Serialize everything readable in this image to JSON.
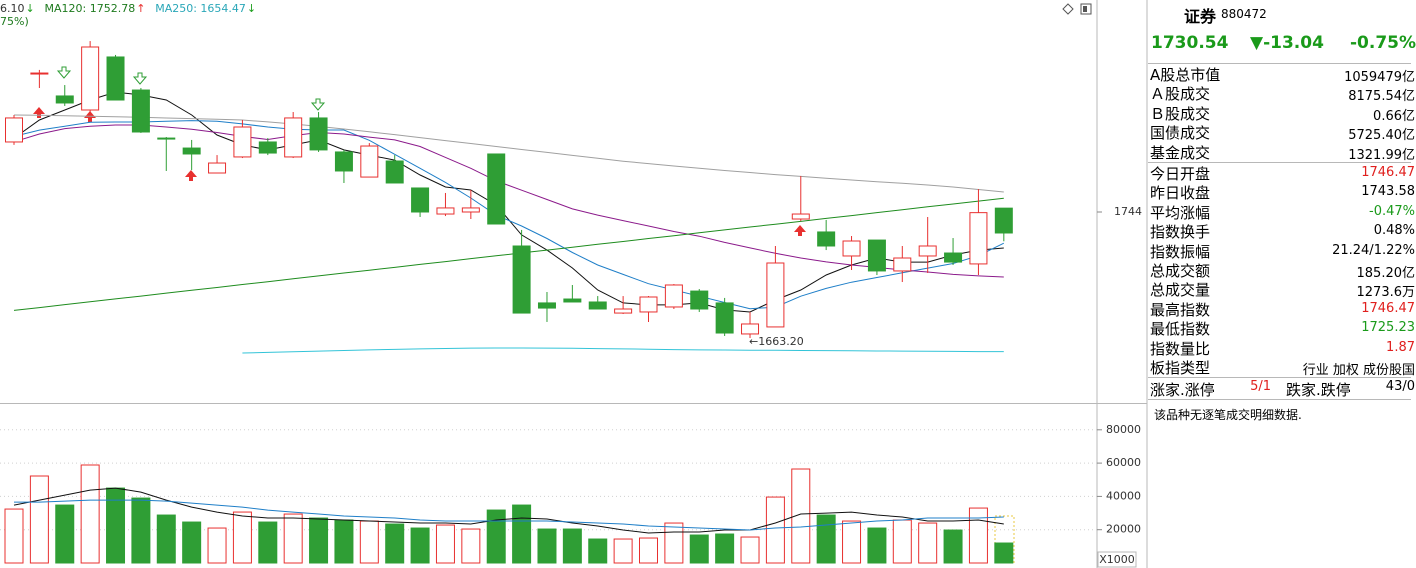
{
  "chart_data": [
    {
      "type": "candlestick",
      "categories": [
        null,
        null,
        null,
        null,
        null,
        null,
        null,
        null,
        null,
        null,
        null,
        null,
        null,
        null,
        null,
        null,
        null,
        null,
        null,
        null,
        null,
        null,
        null,
        null,
        null,
        null,
        null,
        null,
        null,
        null,
        null,
        null,
        null,
        null,
        null,
        null,
        null,
        null,
        null,
        null
      ],
      "open": [
        1788.9,
        1832.5,
        1818.4,
        1809.4,
        1843.4,
        1822.2,
        1791.4,
        1785.0,
        1769.0,
        1779.3,
        1788.9,
        1779.3,
        1804.3,
        1782.5,
        1766.4,
        1776.7,
        1759.4,
        1742.7,
        1744.0,
        1781.2,
        1722.2,
        1685.7,
        1688.2,
        1686.3,
        1679.2,
        1679.9,
        1683.1,
        1693.3,
        1685.7,
        1665.8,
        1670.3,
        1739.5,
        1731.2,
        1715.8,
        1726.0,
        1706.2,
        1715.8,
        1717.7,
        1710.7,
        1746.47
      ],
      "high": [
        1806.2,
        1835.1,
        1825.4,
        1853.6,
        1844.7,
        1823.5,
        1792.1,
        1790.2,
        1780.5,
        1803.0,
        1791.4,
        1808.1,
        1808.1,
        1783.8,
        1788.2,
        1780.5,
        1759.4,
        1756.2,
        1758.1,
        1781.2,
        1732.5,
        1692.7,
        1697.2,
        1690.1,
        1690.1,
        1690.1,
        1697.8,
        1694.6,
        1688.9,
        1679.9,
        1722.2,
        1767.1,
        1738.9,
        1728.6,
        1726.0,
        1722.2,
        1740.8,
        1727.3,
        1758.7,
        1746.47
      ],
      "low": [
        1787.0,
        1823.5,
        1812.0,
        1808.1,
        1815.8,
        1794.7,
        1770.3,
        1770.9,
        1769.0,
        1778.6,
        1780.5,
        1778.6,
        1782.5,
        1762.6,
        1766.4,
        1762.6,
        1740.8,
        1741.4,
        1739.5,
        1736.3,
        1679.2,
        1673.5,
        1686.3,
        1681.8,
        1678.6,
        1673.5,
        1681.8,
        1679.9,
        1664.5,
        1663.2,
        1670.3,
        1738.2,
        1719.6,
        1706.8,
        1703.6,
        1699.1,
        1704.9,
        1710.0,
        1703.6,
        1725.23
      ],
      "close": [
        1804.3,
        1833.1,
        1813.9,
        1849.8,
        1815.8,
        1795.3,
        1790.8,
        1781.2,
        1775.4,
        1798.5,
        1781.8,
        1804.3,
        1783.8,
        1770.3,
        1786.3,
        1762.6,
        1744.0,
        1746.6,
        1746.6,
        1736.3,
        1679.2,
        1682.4,
        1686.3,
        1681.8,
        1681.8,
        1689.5,
        1697.2,
        1681.8,
        1666.4,
        1672.2,
        1711.3,
        1742.7,
        1722.2,
        1725.4,
        1706.2,
        1714.5,
        1722.2,
        1711.9,
        1743.58,
        1730.54
      ],
      "up_color": "#e8302f",
      "down_color": "#2f9e35",
      "series": [
        {
          "color": "#111111",
          "values": [
            1791.4,
            1803.0,
            1809.4,
            1815.8,
            1820.9,
            1819.0,
            1815.8,
            1806.2,
            1793.4,
            1787.0,
            1783.8,
            1787.0,
            1790.2,
            1783.8,
            1780.5,
            1777.3,
            1767.7,
            1760.0,
            1758.1,
            1748.5,
            1729.3,
            1719.6,
            1708.1,
            1694.0,
            1685.7,
            1684.4,
            1684.4,
            1685.7,
            1681.2,
            1679.9,
            1687.6,
            1694.0,
            1703.6,
            1710.0,
            1714.5,
            1711.9,
            1711.9,
            1716.4,
            1719.6,
            1720.9
          ]
        },
        {
          "color": "#1f7fc8",
          "values": [
            1792.5,
            1796.5,
            1799.0,
            1801.5,
            1801.7,
            1801.7,
            1802.2,
            1802.6,
            1802.2,
            1800.5,
            1798.5,
            1797.0,
            1796.6,
            1796.6,
            1790.0,
            1781.0,
            1772.0,
            1763.0,
            1753.0,
            1742.0,
            1735.0,
            1727.0,
            1718.0,
            1710.0,
            1704.0,
            1698.0,
            1694.0,
            1690.0,
            1686.0,
            1682.0,
            1683.0,
            1690.0,
            1695.0,
            1699.0,
            1702.0,
            1705.0,
            1708.0,
            1711.0,
            1716.0,
            1724.0
          ]
        },
        {
          "color": "#8b1a8b",
          "values": [
            1789.0,
            1794.0,
            1797.5,
            1799.0,
            1799.8,
            1799.8,
            1798.5,
            1797.0,
            1795.0,
            1792.5,
            1790.5,
            1793.0,
            1795.0,
            1794.0,
            1792.0,
            1790.2,
            1786.0,
            1779.0,
            1772.0,
            1764.0,
            1758.0,
            1752.0,
            1746.0,
            1742.0,
            1738.5,
            1735.0,
            1731.5,
            1728.5,
            1724.5,
            1721.0,
            1717.5,
            1714.5,
            1712.0,
            1710.0,
            1708.5,
            1706.8,
            1705.5,
            1704.0,
            1703.0,
            1702.3
          ]
        },
        {
          "color": "#a0a0a0",
          "values": [
            1806.2,
            1806.0,
            1805.7,
            1805.4,
            1805.1,
            1804.7,
            1804.3,
            1803.9,
            1803.5,
            1803.0,
            1801.8,
            1800.4,
            1798.9,
            1797.2,
            1795.4,
            1793.6,
            1791.7,
            1789.8,
            1787.9,
            1786.0,
            1784.1,
            1782.2,
            1780.3,
            1778.4,
            1776.6,
            1775.0,
            1773.5,
            1772.0,
            1770.6,
            1769.3,
            1768.0,
            1766.8,
            1765.6,
            1764.5,
            1763.4,
            1762.4,
            1761.3,
            1760.0,
            1758.4,
            1756.8
          ]
        },
        {
          "color": "#1e8c1e",
          "values": [
            1680.9,
            1682.7,
            1684.6,
            1686.4,
            1688.3,
            1690.1,
            1692.0,
            1693.8,
            1695.6,
            1697.5,
            1699.3,
            1701.2,
            1703.0,
            1704.9,
            1706.7,
            1708.5,
            1710.4,
            1712.2,
            1714.1,
            1715.9,
            1717.8,
            1719.6,
            1721.4,
            1723.3,
            1725.1,
            1727.0,
            1728.8,
            1730.7,
            1732.5,
            1734.4,
            1736.2,
            1738.0,
            1739.9,
            1741.7,
            1743.6,
            1745.4,
            1747.3,
            1749.1,
            1751.0,
            1752.78
          ]
        },
        {
          "color": "#33c4d8",
          "values": [
            null,
            null,
            null,
            null,
            null,
            null,
            null,
            null,
            null,
            1653.6,
            1654.0,
            1654.4,
            1654.8,
            1655.2,
            1655.6,
            1655.9,
            1656.2,
            1656.5,
            1656.7,
            1656.8,
            1656.8,
            1656.7,
            1656.6,
            1656.4,
            1656.2,
            1656.0,
            1655.8,
            1655.6,
            1655.5,
            1655.4,
            1655.3,
            1655.2,
            1655.1,
            1655.0,
            1654.9,
            1654.8,
            1654.7,
            1654.6,
            1654.5,
            1654.47
          ]
        }
      ],
      "ylim": [
        1621.53,
        1879.93
      ],
      "yticks": [
        1744
      ],
      "annotation": "←1663.20",
      "header": [
        {
          "text": "6.10",
          "color": "#333333",
          "arrow": "↓",
          "arrow_color": "#1e9e1e"
        },
        {
          "text": "MA120: 1752.78",
          "color": "#1e7a1e",
          "arrow": "↑",
          "arrow_color": "#e8302f"
        },
        {
          "text": "MA250: 1654.47",
          "color": "#2aa7b8",
          "arrow": "↓",
          "arrow_color": "#1e9e1e"
        }
      ],
      "subheader": "75%)"
    },
    {
      "type": "bar",
      "values": [
        32400,
        52250,
        34800,
        58860,
        45000,
        39000,
        28800,
        24600,
        21000,
        30600,
        24600,
        29400,
        27000,
        25800,
        25200,
        23400,
        21000,
        22800,
        20400,
        31800,
        34800,
        20400,
        20400,
        14400,
        14400,
        15000,
        24000,
        16800,
        17400,
        15600,
        39600,
        56450,
        28800,
        25200,
        21000,
        25800,
        24000,
        19800,
        33000,
        12000
      ],
      "series": [
        {
          "color": "#111111",
          "values": [
            34800,
            37800,
            40800,
            43800,
            45000,
            42600,
            37800,
            33600,
            30600,
            28200,
            27000,
            27000,
            26400,
            25800,
            25200,
            24600,
            24000,
            24000,
            23400,
            25800,
            27000,
            26400,
            24000,
            22200,
            19800,
            18000,
            18600,
            18600,
            19800,
            19800,
            24000,
            29400,
            30000,
            30600,
            28800,
            27600,
            25200,
            25200,
            25800,
            23400
          ]
        },
        {
          "color": "#1f7fc8",
          "values": [
            36600,
            36600,
            37200,
            37800,
            37800,
            37800,
            37200,
            36000,
            34800,
            33600,
            31800,
            30600,
            29400,
            28200,
            27600,
            27000,
            25800,
            25200,
            25200,
            25200,
            25200,
            25200,
            24600,
            24000,
            23400,
            22200,
            21600,
            21000,
            20400,
            19800,
            21000,
            21600,
            22800,
            24000,
            25200,
            25800,
            27000,
            27000,
            27000,
            27600
          ]
        }
      ],
      "ylim": [
        0,
        94895
      ],
      "yticks": [
        20000,
        40000,
        60000,
        80000
      ],
      "grid": true,
      "unit_label": "X1000"
    }
  ],
  "panel": {
    "name": "证券",
    "code": "880472",
    "quote": [
      {
        "text": "1730.54",
        "color": "#1a9a1a"
      },
      {
        "text": "▼-13.04",
        "color": "#1a9a1a"
      },
      {
        "text": "-0.75%",
        "color": "#1a9a1a"
      }
    ],
    "groups": [
      [
        {
          "label": "A股总市值",
          "value": "1059479亿",
          "color": "#000000"
        },
        {
          "label": "Ａ股成交",
          "value": "8175.54亿",
          "color": "#000000"
        },
        {
          "label": "Ｂ股成交",
          "value": "0.66亿",
          "color": "#000000"
        },
        {
          "label": "国债成交",
          "value": "5725.40亿",
          "color": "#000000"
        },
        {
          "label": "基金成交",
          "value": "1321.99亿",
          "color": "#000000"
        }
      ],
      [
        {
          "label": "今日开盘",
          "value": "1746.47",
          "color": "#e0201e"
        },
        {
          "label": "昨日收盘",
          "value": "1743.58",
          "color": "#000000"
        },
        {
          "label": "平均涨幅",
          "value": "-0.47%",
          "color": "#1a9a1a"
        },
        {
          "label": "指数换手",
          "value": "0.48%",
          "color": "#000000"
        },
        {
          "label": "指数振幅",
          "value": "21.24/1.22%",
          "color": "#000000"
        },
        {
          "label": "总成交额",
          "value": "185.20亿",
          "color": "#000000"
        },
        {
          "label": "总成交量",
          "value": "1273.6万",
          "color": "#000000"
        },
        {
          "label": "最高指数",
          "value": "1746.47",
          "color": "#e0201e"
        },
        {
          "label": "最低指数",
          "value": "1725.23",
          "color": "#1a9a1a"
        },
        {
          "label": "指数量比",
          "value": "1.87",
          "color": "#e0201e"
        },
        {
          "label": "板指类型",
          "value": "行业 加权 成份股国",
          "color": "#000000"
        }
      ]
    ],
    "limit_row": [
      {
        "text": "涨家.涨停",
        "color": "#000000"
      },
      {
        "text": "5/1",
        "color": "#e0201e"
      },
      {
        "text": "跌家.跌停",
        "color": "#000000"
      },
      {
        "text": "43/0",
        "color": "#000000"
      }
    ],
    "note": "该品种无逐笔成交明细数据."
  }
}
